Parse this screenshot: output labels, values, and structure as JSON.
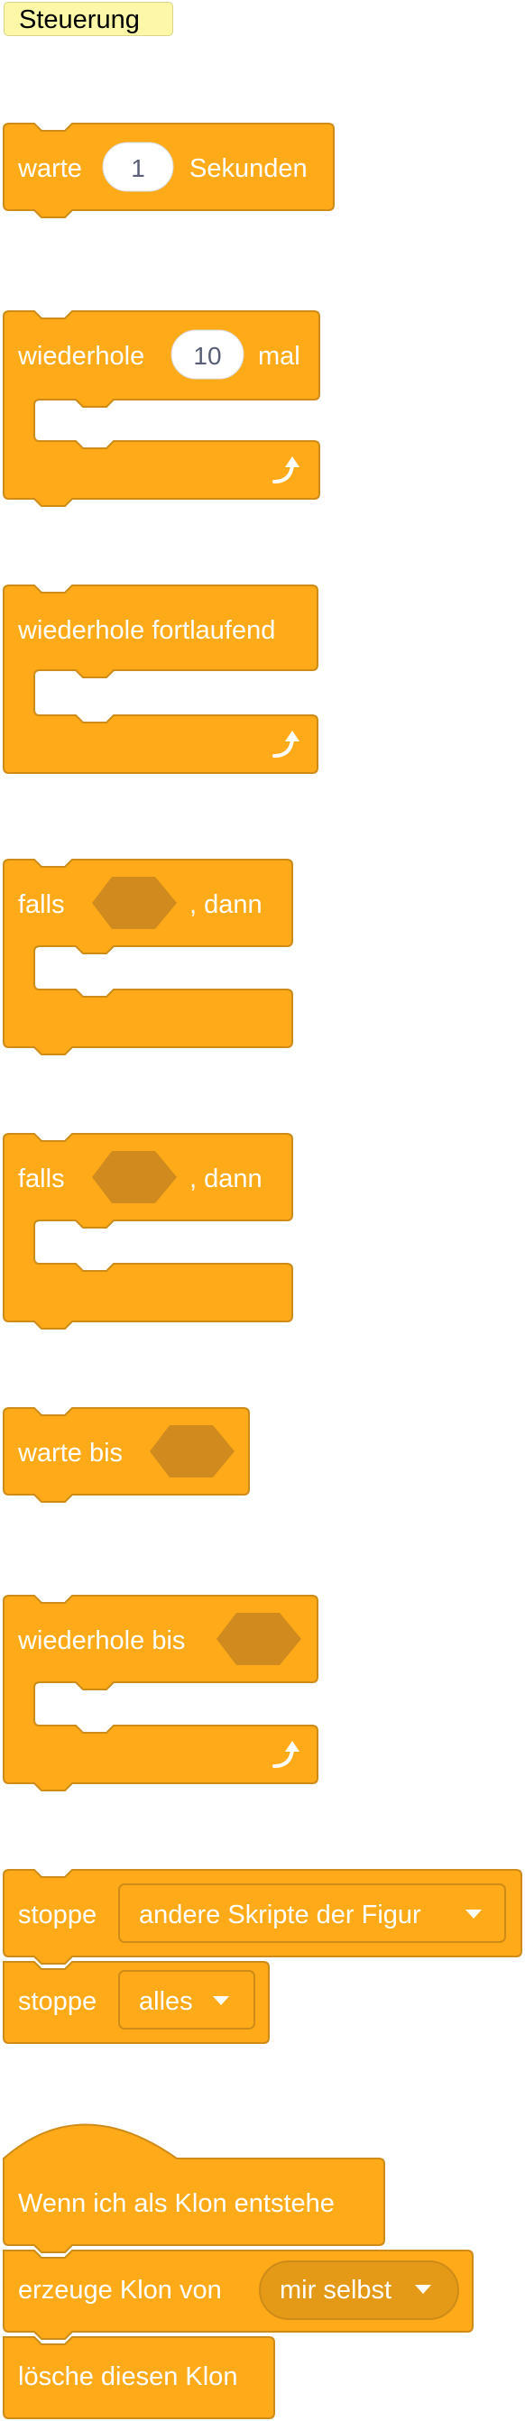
{
  "category": {
    "label": "Steuerung"
  },
  "blocks": {
    "wait": {
      "prefix": "warte",
      "value": "1",
      "suffix": "Sekunden"
    },
    "repeat": {
      "prefix": "wiederhole",
      "value": "10",
      "suffix": "mal"
    },
    "forever": {
      "label": "wiederhole fortlaufend"
    },
    "if_then": {
      "prefix": "falls",
      "suffix": ", dann"
    },
    "if_then_2": {
      "prefix": "falls",
      "suffix": ", dann"
    },
    "wait_until": {
      "label": "warte bis"
    },
    "repeat_until": {
      "label": "wiederhole bis"
    },
    "stop_other": {
      "label": "stoppe",
      "option": "andere Skripte der Figur"
    },
    "stop_all": {
      "label": "stoppe",
      "option": "alles"
    },
    "when_clone": {
      "label": "Wenn ich als Klon entstehe"
    },
    "create_clone": {
      "label": "erzeuge Klon von",
      "option": "mir selbst"
    },
    "delete_clone": {
      "label": "lösche diesen Klon"
    }
  },
  "colors": {
    "control": "#ffab19",
    "control_border": "#cf8b17",
    "control_dark": "#d18a1e",
    "category_bg": "#fcf8a7"
  },
  "icons": {
    "loop_arrow": "rotate-arrow-icon",
    "dropdown": "caret-down-icon"
  }
}
